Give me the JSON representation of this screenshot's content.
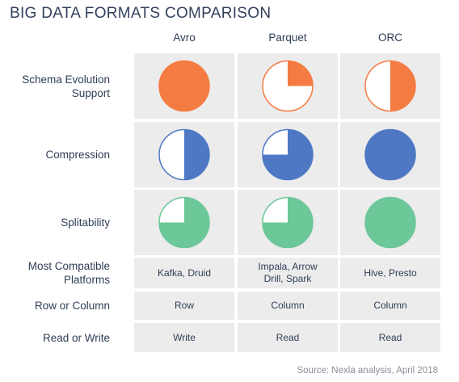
{
  "title": "BIG DATA FORMATS COMPARISON",
  "columns": [
    "Avro",
    "Parquet",
    "ORC"
  ],
  "rows": [
    {
      "label": "Schema Evolution\nSupport",
      "type": "ball",
      "color": "#f47c42",
      "levels": [
        1,
        0.25,
        0.5
      ]
    },
    {
      "label": "Compression",
      "type": "ball",
      "color": "#4f78c4",
      "levels": [
        0.5,
        0.75,
        1
      ]
    },
    {
      "label": "Splitability",
      "type": "ball",
      "color": "#6cc799",
      "levels": [
        0.75,
        0.75,
        1
      ]
    },
    {
      "label": "Most Compatible\nPlatforms",
      "type": "text",
      "values": [
        "Kafka, Druid",
        "Impala, Arrow\nDrill, Spark",
        "Hive, Presto"
      ]
    },
    {
      "label": "Row or Column",
      "type": "text",
      "values": [
        "Row",
        "Column",
        "Column"
      ]
    },
    {
      "label": "Read or Write",
      "type": "text",
      "values": [
        "Write",
        "Read",
        "Read"
      ]
    }
  ],
  "source": "Source: Nexla analysis, April 2018"
}
